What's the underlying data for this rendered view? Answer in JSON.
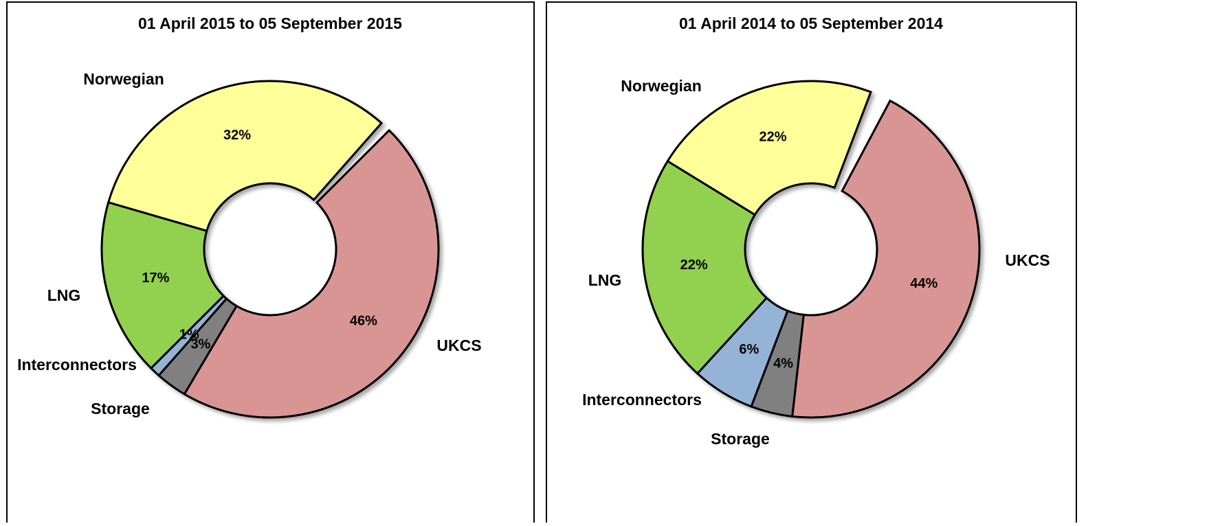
{
  "chart_data": [
    {
      "type": "donut",
      "title": "01 April 2015 to 05 September 2015",
      "categories": [
        "UKCS",
        "Storage",
        "Interconnectors",
        "LNG",
        "Norwegian"
      ],
      "values": [
        46,
        3,
        1,
        17,
        32
      ],
      "value_labels": [
        "46%",
        "3%",
        "1%",
        "17%",
        "32%"
      ],
      "colors": [
        "#d99594",
        "#808080",
        "#95b3d7",
        "#92d050",
        "#ffff99"
      ]
    },
    {
      "type": "donut",
      "title": "01 April 2014 to 05 September 2014",
      "categories": [
        "UKCS",
        "Storage",
        "Interconnectors",
        "LNG",
        "Norwegian"
      ],
      "values": [
        44,
        4,
        6,
        22,
        22
      ],
      "value_labels": [
        "44%",
        "4%",
        "6%",
        "22%",
        "22%"
      ],
      "colors": [
        "#d99594",
        "#808080",
        "#95b3d7",
        "#92d050",
        "#ffff99"
      ]
    }
  ]
}
